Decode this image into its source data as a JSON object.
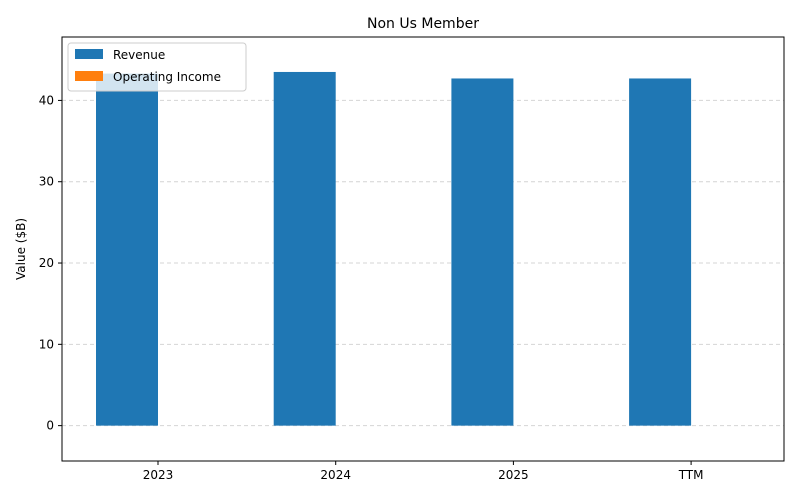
{
  "chart_data": {
    "type": "bar",
    "title": "Non Us Member",
    "xlabel": "",
    "ylabel": "Value ($B)",
    "categories": [
      "2023",
      "2024",
      "2025",
      "TTM"
    ],
    "series": [
      {
        "name": "Revenue",
        "values": [
          43.3,
          43.5,
          42.7,
          42.7
        ],
        "color": "#1f77b4"
      },
      {
        "name": "Operating Income",
        "values": [
          0,
          0,
          0,
          0
        ],
        "color": "#ff7f0e"
      }
    ],
    "ylim": [
      -4.35,
      47.8
    ],
    "yticks": [
      0,
      10,
      20,
      30,
      40
    ],
    "grid": "y-dashed",
    "legend_position": "upper-left"
  }
}
